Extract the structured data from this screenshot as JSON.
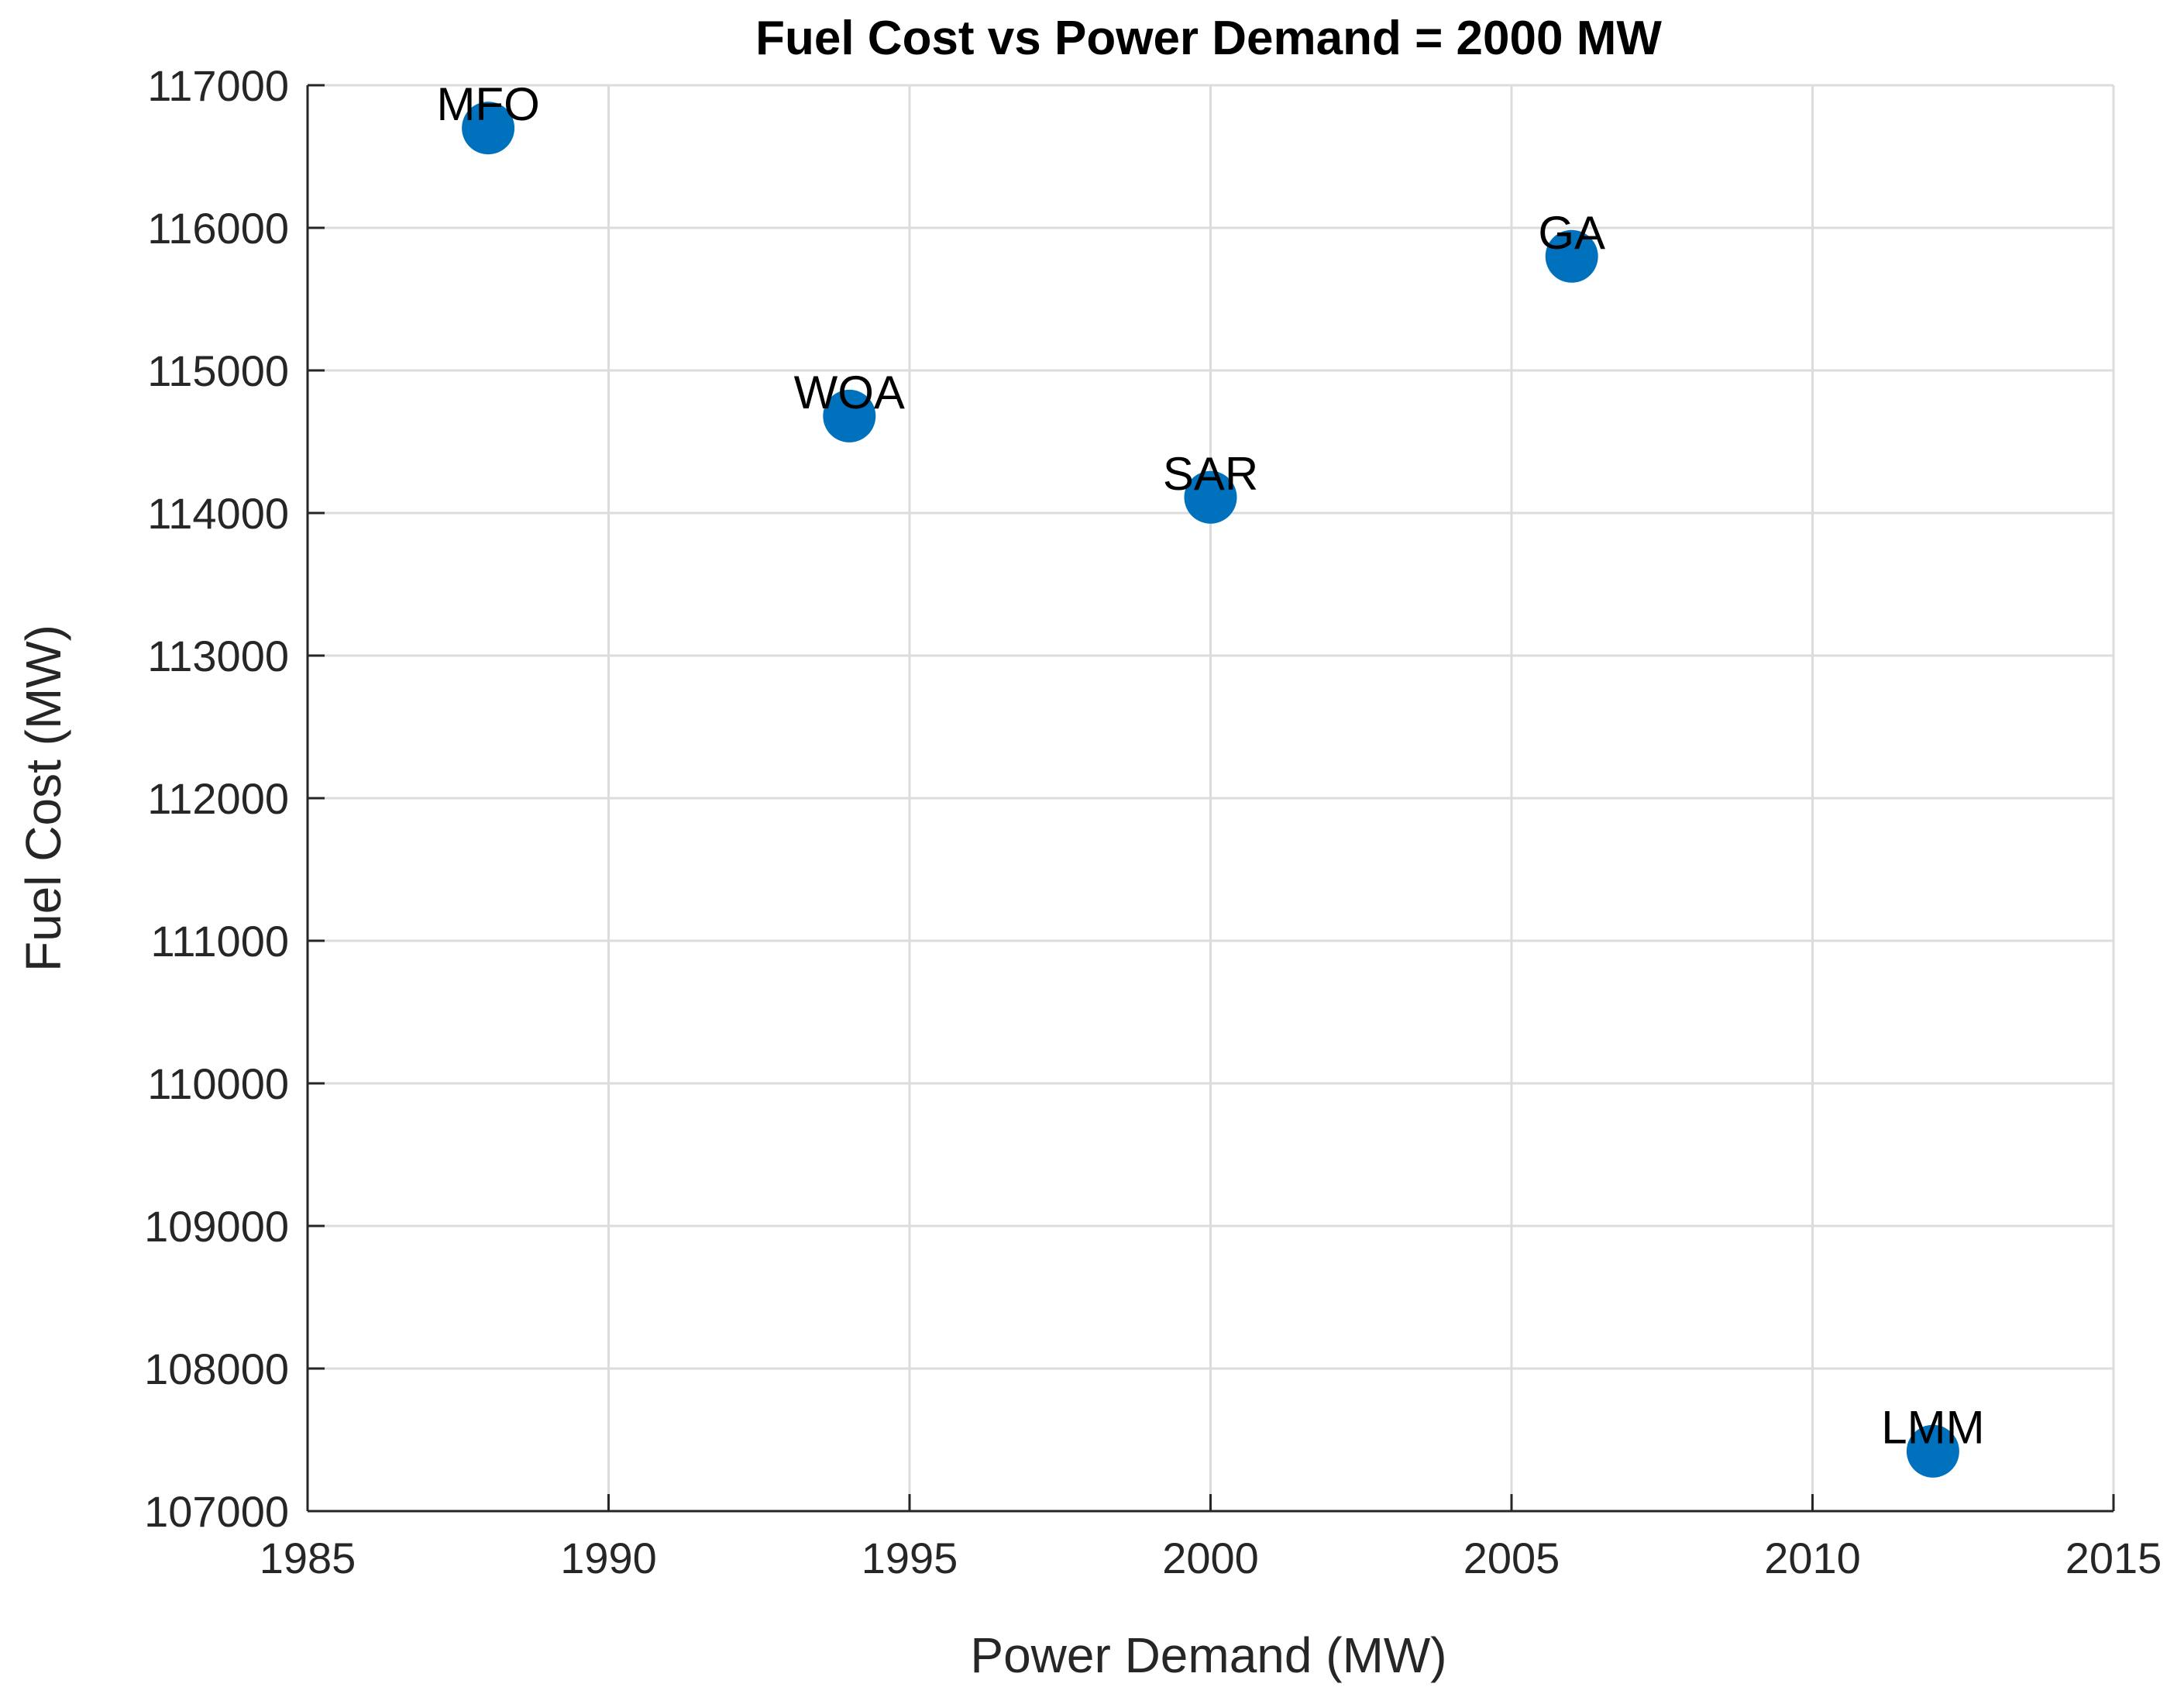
{
  "chart_data": {
    "type": "scatter",
    "title": "Fuel Cost vs Power Demand = 2000 MW",
    "xlabel": "Power Demand (MW)",
    "ylabel": "Fuel Cost (MW)",
    "xlim": [
      1985,
      2015
    ],
    "ylim": [
      107000,
      117000
    ],
    "xticks": [
      1985,
      1990,
      1995,
      2000,
      2005,
      2010,
      2015
    ],
    "yticks": [
      107000,
      108000,
      109000,
      110000,
      111000,
      112000,
      113000,
      114000,
      115000,
      116000,
      117000
    ],
    "grid": true,
    "marker_color": "#0072BD",
    "points": [
      {
        "label": "MFO",
        "x": 1988,
        "y": 116700
      },
      {
        "label": "WOA",
        "x": 1994,
        "y": 114680
      },
      {
        "label": "SAR",
        "x": 2000,
        "y": 114110
      },
      {
        "label": "GA",
        "x": 2006,
        "y": 115800
      },
      {
        "label": "LMM",
        "x": 2012,
        "y": 107420
      }
    ]
  }
}
